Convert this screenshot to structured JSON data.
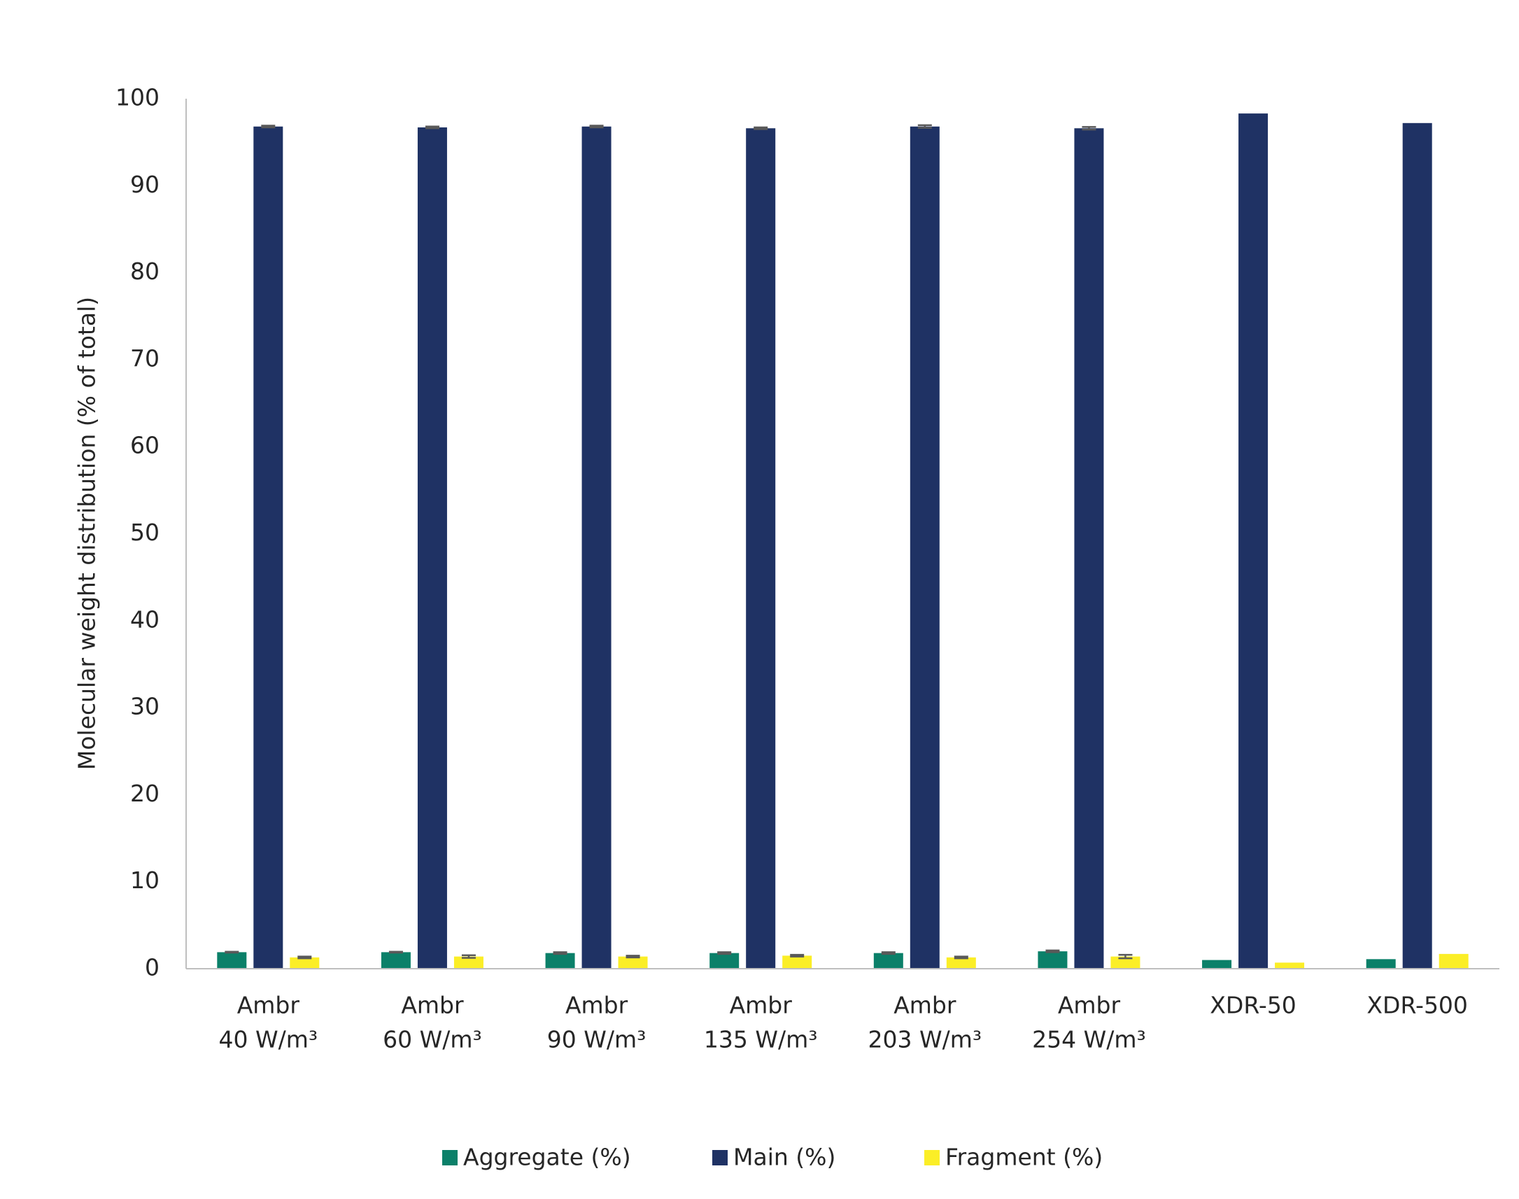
{
  "chart_data": {
    "type": "bar",
    "y_label": "Molecular weight distribution (% of total)",
    "categories": [
      [
        "Ambr",
        "40 W/m³"
      ],
      [
        "Ambr",
        "60 W/m³"
      ],
      [
        "Ambr",
        "90 W/m³"
      ],
      [
        "Ambr",
        "135 W/m³"
      ],
      [
        "Ambr",
        "203 W/m³"
      ],
      [
        "Ambr",
        "254 W/m³"
      ],
      [
        "XDR-50"
      ],
      [
        "XDR-500"
      ]
    ],
    "series": [
      {
        "name": "Aggregate (%)",
        "color": "#0b8069",
        "values": [
          1.9,
          1.9,
          1.8,
          1.8,
          1.8,
          2.0,
          1.0,
          1.1
        ],
        "errors": [
          0.05,
          0.05,
          0.1,
          0.1,
          0.1,
          0.1,
          null,
          null
        ]
      },
      {
        "name": "Main (%)",
        "color": "#1f3264",
        "values": [
          96.8,
          96.7,
          96.8,
          96.6,
          96.8,
          96.6,
          98.3,
          97.2
        ],
        "errors": [
          0.1,
          0.1,
          0.1,
          0.1,
          0.15,
          0.15,
          null,
          null
        ]
      },
      {
        "name": "Fragment (%)",
        "color": "#fbee27",
        "values": [
          1.3,
          1.4,
          1.4,
          1.5,
          1.3,
          1.4,
          0.7,
          1.7
        ],
        "errors": [
          0.1,
          0.15,
          0.1,
          0.1,
          0.1,
          0.2,
          null,
          null
        ]
      }
    ],
    "ylim": [
      0,
      100
    ],
    "yticks": [
      0,
      10,
      20,
      30,
      40,
      50,
      60,
      70,
      80,
      90,
      100
    ],
    "grid": false,
    "legend": "bottom"
  }
}
